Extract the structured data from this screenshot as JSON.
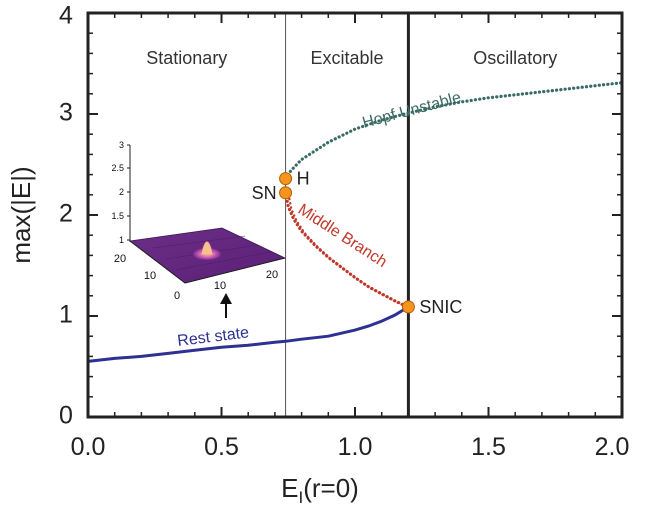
{
  "chart_data": {
    "type": "line",
    "title": "",
    "xlabel_main": "E",
    "xlabel_sub": "I",
    "xlabel_rest": "(r=0)",
    "ylabel": "max(|E|)",
    "xlim": [
      0.0,
      2.0
    ],
    "ylim": [
      0.0,
      4.0
    ],
    "x_ticks": [
      "0.0",
      "0.5",
      "1.0",
      "1.5",
      "2.0"
    ],
    "y_ticks": [
      "0",
      "1",
      "2",
      "3",
      "4"
    ],
    "region_boundaries": [
      0.74,
      1.2
    ],
    "regions": [
      {
        "label": "Stationary",
        "x": 0.37
      },
      {
        "label": "Excitable",
        "x": 0.97
      },
      {
        "label": "Oscillatory",
        "x": 1.6
      }
    ],
    "series": [
      {
        "name": "Rest state",
        "style": "solid",
        "color": "#2e3192",
        "x": [
          0.0,
          0.1,
          0.2,
          0.3,
          0.4,
          0.5,
          0.6,
          0.7,
          0.74,
          0.8,
          0.9,
          1.0,
          1.05,
          1.1,
          1.15,
          1.2
        ],
        "y": [
          0.55,
          0.58,
          0.6,
          0.63,
          0.66,
          0.69,
          0.71,
          0.74,
          0.75,
          0.77,
          0.8,
          0.86,
          0.9,
          0.95,
          1.01,
          1.09
        ]
      },
      {
        "name": "Middle Branch",
        "style": "dotted",
        "color": "#c0392b",
        "x": [
          0.74,
          0.75,
          0.77,
          0.8,
          0.85,
          0.9,
          0.95,
          1.0,
          1.05,
          1.1,
          1.15,
          1.2
        ],
        "y": [
          2.22,
          2.08,
          1.96,
          1.84,
          1.7,
          1.58,
          1.48,
          1.38,
          1.29,
          1.22,
          1.15,
          1.09
        ]
      },
      {
        "name": "Hopf Unstable",
        "style": "dotted",
        "color": "#3a6b66",
        "x": [
          0.74,
          0.76,
          0.8,
          0.9,
          1.0,
          1.1,
          1.2,
          1.3,
          1.4,
          1.5,
          1.6,
          1.7,
          1.8,
          1.9,
          2.0
        ],
        "y": [
          2.36,
          2.44,
          2.55,
          2.72,
          2.85,
          2.94,
          3.01,
          3.07,
          3.12,
          3.16,
          3.19,
          3.22,
          3.25,
          3.28,
          3.31
        ]
      }
    ],
    "points": [
      {
        "label": "H",
        "x": 0.74,
        "y": 2.36,
        "label_side": "right"
      },
      {
        "label": "SN",
        "x": 0.74,
        "y": 2.22,
        "label_side": "left"
      },
      {
        "label": "SNIC",
        "x": 1.2,
        "y": 1.09,
        "label_side": "right"
      }
    ],
    "point_color": "#f7941d",
    "inset": {
      "z_ticks": [
        "1",
        "1.5",
        "2",
        "2.5",
        "3"
      ],
      "y_ticks": [
        "20",
        "10",
        "0"
      ],
      "x_ticks": [
        "0",
        "10",
        "20"
      ]
    }
  }
}
